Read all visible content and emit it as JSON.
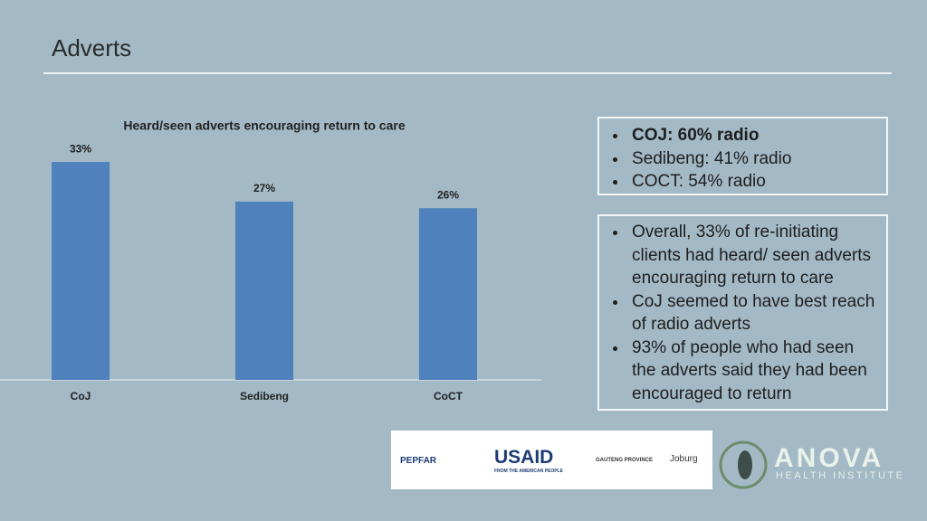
{
  "header": {
    "title": "Adverts"
  },
  "chart_data": {
    "type": "bar",
    "title": "Heard/seen adverts encouraging return to care",
    "categories": [
      "CoJ",
      "Sedibeng",
      "CoCT"
    ],
    "values": [
      33,
      27,
      26
    ],
    "value_labels": [
      "33%",
      "27%",
      "26%"
    ],
    "color": "#4f81bd"
  },
  "boxes": [
    {
      "items": [
        "COJ: 60% radio",
        "Sedibeng: 41% radio",
        "COCT: 54% radio"
      ]
    },
    {
      "items": [
        "Overall, 33% of re-initiating clients had heard/ seen adverts encouraging return to care",
        "CoJ seemed to have best reach of radio adverts",
        "93% of people who had seen the adverts said they had been encouraged to return"
      ]
    }
  ],
  "logos": {
    "pepfar": "PEPFAR",
    "usaid": "USAID",
    "usaid_sub": "FROM THE AMERICAN PEOPLE",
    "gauteng": "GAUTENG PROVINCE",
    "joburg": "Joburg",
    "anova": "ANOVA",
    "anova_sub": "HEALTH INSTITUTE"
  }
}
